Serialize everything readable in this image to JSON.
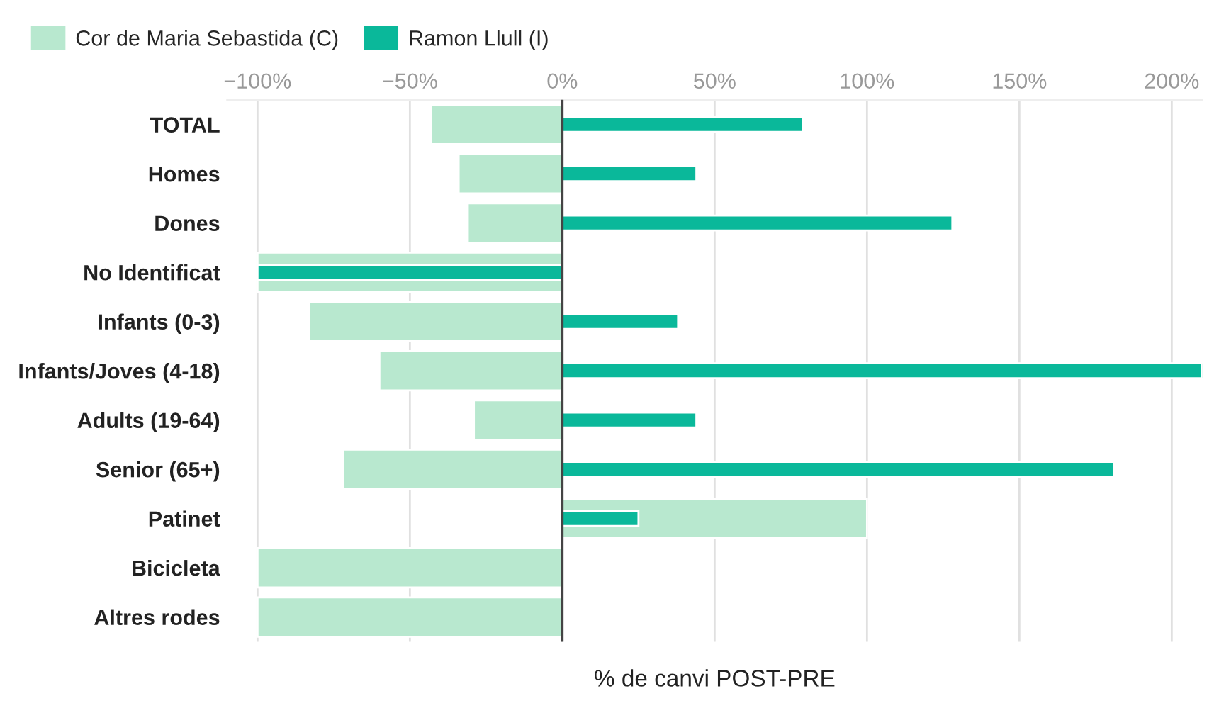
{
  "chart_data": {
    "type": "bar",
    "orientation": "horizontal",
    "xlabel": "% de canvi POST-PRE",
    "categories": [
      "TOTAL",
      "Homes",
      "Dones",
      "No Identificat",
      "Infants (0-3)",
      "Infants/Joves (4-18)",
      "Adults (19-64)",
      "Senior (65+)",
      "Patinet",
      "Bicicleta",
      "Altres rodes"
    ],
    "series": [
      {
        "name": "Cor de Maria Sebastida (C)",
        "color": "#b8e8cf",
        "values": [
          -43,
          -34,
          -31,
          -100,
          -83,
          -60,
          -29,
          -72,
          100,
          -100,
          -100
        ]
      },
      {
        "name": "Ramon Llull (I)",
        "color": "#0ab89a",
        "values": [
          79,
          44,
          128,
          -100,
          38,
          210,
          44,
          181,
          25,
          null,
          null
        ]
      }
    ],
    "xlim": [
      -110,
      210
    ],
    "xticks": [
      {
        "value": -100,
        "label": "−100%"
      },
      {
        "value": -50,
        "label": "−50%"
      },
      {
        "value": 0,
        "label": "0%"
      },
      {
        "value": 50,
        "label": "50%"
      },
      {
        "value": 100,
        "label": "100%"
      },
      {
        "value": 150,
        "label": "150%"
      },
      {
        "value": 200,
        "label": "200%"
      }
    ],
    "ref_lines": [
      {
        "axis": "x",
        "value": 0,
        "color": "#444444"
      }
    ],
    "grid": "x",
    "legend": "top left"
  }
}
